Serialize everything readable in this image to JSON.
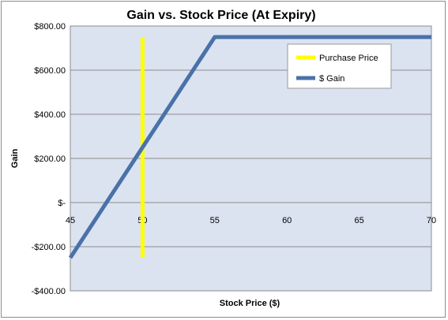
{
  "chart_data": {
    "type": "line",
    "title": "Gain vs. Stock Price (At Expiry)",
    "xlabel": "Stock Price ($)",
    "ylabel": "Gain",
    "xlim": [
      45,
      70
    ],
    "ylim": [
      -400,
      800
    ],
    "x_ticks": [
      45,
      50,
      55,
      60,
      65,
      70
    ],
    "y_ticks": [
      800,
      600,
      400,
      200,
      0,
      -200,
      -400
    ],
    "y_tick_labels": [
      "$800.00",
      "$600.00",
      "$400.00",
      "$200.00",
      "$-",
      "-$200.00",
      "-$400.00"
    ],
    "grid": true,
    "legend_position": "top-right",
    "series": [
      {
        "name": "Purchase Price",
        "color": "#ffff00",
        "points": [
          [
            50,
            -250
          ],
          [
            50,
            750
          ]
        ]
      },
      {
        "name": "$ Gain",
        "color": "#4a72a8",
        "points": [
          [
            45,
            -250
          ],
          [
            55,
            750
          ],
          [
            70,
            750
          ]
        ]
      }
    ],
    "plot_background": "#dbe3f1"
  }
}
